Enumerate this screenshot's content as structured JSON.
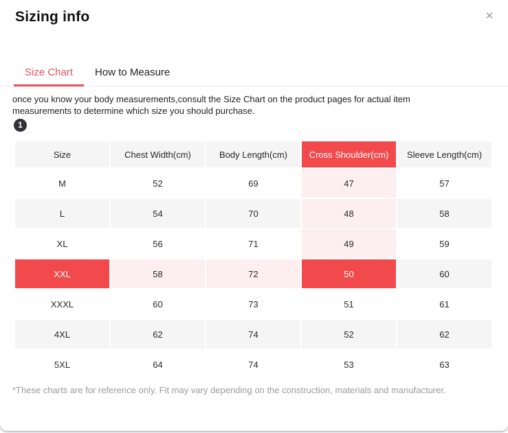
{
  "modal": {
    "title": "Sizing info",
    "close_glyph": "✕"
  },
  "tabs": [
    {
      "label": "Size Chart",
      "active": true
    },
    {
      "label": "How to Measure",
      "active": false
    }
  ],
  "description": "once you know your body measurements,consult the Size Chart on the product pages for actual item measurements to determine which size you should purchase.",
  "step_badge": "1",
  "size_table": {
    "columns": [
      "Size",
      "Chest Width(cm)",
      "Body Length(cm)",
      "Cross Shoulder(cm)",
      "Sleeve Length(cm)"
    ],
    "rows": [
      {
        "size": "M",
        "values": [
          "52",
          "69",
          "47",
          "57"
        ]
      },
      {
        "size": "L",
        "values": [
          "54",
          "70",
          "48",
          "58"
        ]
      },
      {
        "size": "XL",
        "values": [
          "56",
          "71",
          "49",
          "59"
        ]
      },
      {
        "size": "XXL",
        "values": [
          "58",
          "72",
          "50",
          "60"
        ]
      },
      {
        "size": "XXXL",
        "values": [
          "60",
          "73",
          "51",
          "61"
        ]
      },
      {
        "size": "4XL",
        "values": [
          "62",
          "74",
          "52",
          "62"
        ]
      },
      {
        "size": "5XL",
        "values": [
          "64",
          "74",
          "53",
          "63"
        ]
      }
    ],
    "highlight": {
      "row_label": "XXL",
      "column_label": "Cross Shoulder(cm)",
      "row_index": 3,
      "col_index": 3
    }
  },
  "footnote": "*These charts are for reference only. Fit may vary depending on the construction, materials and manufacturer.",
  "colors": {
    "accent_red": "#f24a4c",
    "tab_red": "#e4505e",
    "highlight_pink": "#fdeef0",
    "alt_row_gray": "#f5f5f6",
    "badge_dark": "#303036"
  }
}
